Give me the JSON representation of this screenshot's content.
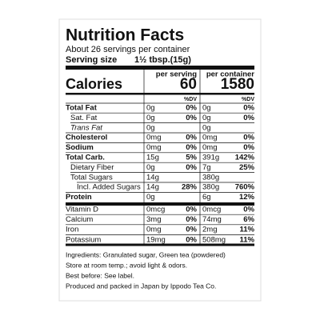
{
  "header": {
    "title": "Nutrition Facts",
    "servings": "About 26 servings per container",
    "serving_size_label": "Serving size",
    "serving_size": "1½ tbsp.(15g)"
  },
  "columns": [
    "per serving",
    "per container"
  ],
  "calories": {
    "label": "Calories",
    "values": [
      "60",
      "1580"
    ]
  },
  "dv_header": "%DV",
  "nutrients": [
    {
      "name": "Total Fat",
      "style": "bold",
      "amounts": [
        "0g",
        "0g"
      ],
      "dv": [
        "0%",
        "0%"
      ]
    },
    {
      "name": "Sat. Fat",
      "style": "indent",
      "amounts": [
        "0g",
        "0g"
      ],
      "dv": [
        "0%",
        "0%"
      ]
    },
    {
      "name": "Trans Fat",
      "style": "italic",
      "amounts": [
        "0g",
        "0g"
      ],
      "dv": [
        null,
        null
      ]
    },
    {
      "name": "Cholesterol",
      "style": "bold",
      "amounts": [
        "0mg",
        "0mg"
      ],
      "dv": [
        "0%",
        "0%"
      ]
    },
    {
      "name": "Sodium",
      "style": "bold",
      "amounts": [
        "0mg",
        "0mg"
      ],
      "dv": [
        "0%",
        "0%"
      ]
    },
    {
      "name": "Total Carb.",
      "style": "bold",
      "amounts": [
        "15g",
        "391g"
      ],
      "dv": [
        "5%",
        "142%"
      ]
    },
    {
      "name": "Dietary Fiber",
      "style": "indent",
      "amounts": [
        "0g",
        "7g"
      ],
      "dv": [
        "0%",
        "25%"
      ]
    },
    {
      "name": "Total Sugars",
      "style": "indent",
      "amounts": [
        "14g",
        "380g"
      ],
      "dv": [
        null,
        null
      ]
    },
    {
      "name": "Incl. Added Sugars",
      "style": "indent2",
      "amounts": [
        "14g",
        "380g"
      ],
      "dv": [
        "28%",
        "760%"
      ]
    },
    {
      "name": "Protein",
      "style": "bold",
      "amounts": [
        "0g",
        "6g"
      ],
      "dv": [
        null,
        "12%"
      ]
    }
  ],
  "vitamins": [
    {
      "name": "Vitamin D",
      "amounts": [
        "0mcg",
        "0mcg"
      ],
      "dv": [
        "0%",
        "0%"
      ]
    },
    {
      "name": "Calcium",
      "amounts": [
        "3mg",
        "74mg"
      ],
      "dv": [
        "0%",
        "6%"
      ]
    },
    {
      "name": "Iron",
      "amounts": [
        "0mg",
        "2mg"
      ],
      "dv": [
        "0%",
        "11%"
      ]
    },
    {
      "name": "Potassium",
      "amounts": [
        "19mg",
        "508mg"
      ],
      "dv": [
        "0%",
        "11%"
      ]
    }
  ],
  "footnotes": [
    "Ingredients: Granulated sugar, Green tea (powdered)",
    "Store at room temp.; avoid light & odors.",
    "Best before: See label.",
    "Produced and packed in Japan by Ippodo Tea Co."
  ]
}
